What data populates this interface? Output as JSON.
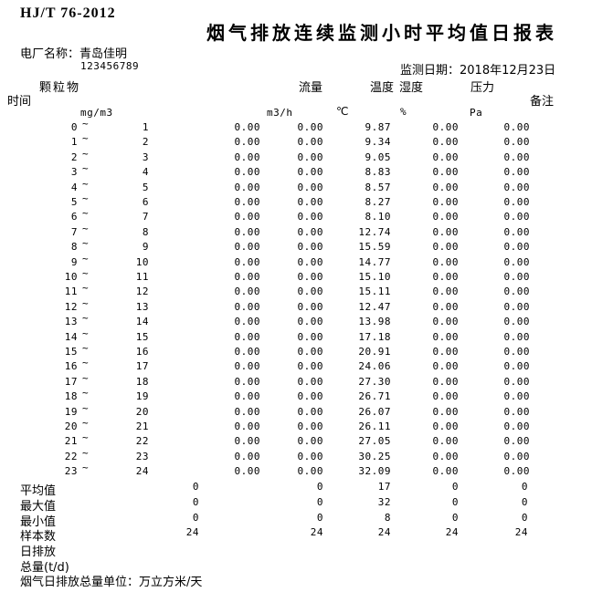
{
  "header": {
    "standard": "HJ/T 76-2012",
    "title": "烟气排放连续监测小时平均值日报表",
    "plant_label": "电厂名称：",
    "plant_name": "青岛佳明",
    "tick_mark": "`",
    "plant_code": "123456789",
    "date_label": "监测日期：",
    "date_value": "2018年12月23日"
  },
  "table": {
    "time_header": "时间",
    "remark_header": "备注",
    "tilde": "~",
    "columns": [
      {
        "label": "颗粒物",
        "unit": "mg/m3"
      },
      {
        "label": "流量",
        "unit": "m3/h"
      },
      {
        "label": "温度",
        "unit": "℃"
      },
      {
        "label": "湿度",
        "unit": "%"
      },
      {
        "label": "压力",
        "unit": "Pa"
      }
    ],
    "hourly_rows": [
      {
        "from": "0",
        "to": "1",
        "values": [
          "0.00",
          "0.00",
          "9.87",
          "0.00",
          "0.00"
        ]
      },
      {
        "from": "1",
        "to": "2",
        "values": [
          "0.00",
          "0.00",
          "9.34",
          "0.00",
          "0.00"
        ]
      },
      {
        "from": "2",
        "to": "3",
        "values": [
          "0.00",
          "0.00",
          "9.05",
          "0.00",
          "0.00"
        ]
      },
      {
        "from": "3",
        "to": "4",
        "values": [
          "0.00",
          "0.00",
          "8.83",
          "0.00",
          "0.00"
        ]
      },
      {
        "from": "4",
        "to": "5",
        "values": [
          "0.00",
          "0.00",
          "8.57",
          "0.00",
          "0.00"
        ]
      },
      {
        "from": "5",
        "to": "6",
        "values": [
          "0.00",
          "0.00",
          "8.27",
          "0.00",
          "0.00"
        ]
      },
      {
        "from": "6",
        "to": "7",
        "values": [
          "0.00",
          "0.00",
          "8.10",
          "0.00",
          "0.00"
        ]
      },
      {
        "from": "7",
        "to": "8",
        "values": [
          "0.00",
          "0.00",
          "12.74",
          "0.00",
          "0.00"
        ]
      },
      {
        "from": "8",
        "to": "9",
        "values": [
          "0.00",
          "0.00",
          "15.59",
          "0.00",
          "0.00"
        ]
      },
      {
        "from": "9",
        "to": "10",
        "values": [
          "0.00",
          "0.00",
          "14.77",
          "0.00",
          "0.00"
        ]
      },
      {
        "from": "10",
        "to": "11",
        "values": [
          "0.00",
          "0.00",
          "15.10",
          "0.00",
          "0.00"
        ]
      },
      {
        "from": "11",
        "to": "12",
        "values": [
          "0.00",
          "0.00",
          "15.11",
          "0.00",
          "0.00"
        ]
      },
      {
        "from": "12",
        "to": "13",
        "values": [
          "0.00",
          "0.00",
          "12.47",
          "0.00",
          "0.00"
        ]
      },
      {
        "from": "13",
        "to": "14",
        "values": [
          "0.00",
          "0.00",
          "13.98",
          "0.00",
          "0.00"
        ]
      },
      {
        "from": "14",
        "to": "15",
        "values": [
          "0.00",
          "0.00",
          "17.18",
          "0.00",
          "0.00"
        ]
      },
      {
        "from": "15",
        "to": "16",
        "values": [
          "0.00",
          "0.00",
          "20.91",
          "0.00",
          "0.00"
        ]
      },
      {
        "from": "16",
        "to": "17",
        "values": [
          "0.00",
          "0.00",
          "24.06",
          "0.00",
          "0.00"
        ]
      },
      {
        "from": "17",
        "to": "18",
        "values": [
          "0.00",
          "0.00",
          "27.30",
          "0.00",
          "0.00"
        ]
      },
      {
        "from": "18",
        "to": "19",
        "values": [
          "0.00",
          "0.00",
          "26.71",
          "0.00",
          "0.00"
        ]
      },
      {
        "from": "19",
        "to": "20",
        "values": [
          "0.00",
          "0.00",
          "26.07",
          "0.00",
          "0.00"
        ]
      },
      {
        "from": "20",
        "to": "21",
        "values": [
          "0.00",
          "0.00",
          "26.11",
          "0.00",
          "0.00"
        ]
      },
      {
        "from": "21",
        "to": "22",
        "values": [
          "0.00",
          "0.00",
          "27.05",
          "0.00",
          "0.00"
        ]
      },
      {
        "from": "22",
        "to": "23",
        "values": [
          "0.00",
          "0.00",
          "30.25",
          "0.00",
          "0.00"
        ]
      },
      {
        "from": "23",
        "to": "24",
        "values": [
          "0.00",
          "0.00",
          "32.09",
          "0.00",
          "0.00"
        ]
      }
    ],
    "summary_rows": [
      {
        "label": "平均值",
        "values": [
          "0",
          "0",
          "17",
          "0",
          "0"
        ]
      },
      {
        "label": "最大值",
        "values": [
          "0",
          "0",
          "32",
          "0",
          "0"
        ]
      },
      {
        "label": "最小值",
        "values": [
          "0",
          "0",
          "8",
          "0",
          "0"
        ]
      },
      {
        "label": "样本数",
        "values": [
          "24",
          "24",
          "24",
          "24",
          "24"
        ]
      },
      {
        "label": "日排放",
        "values": [
          "",
          "",
          "",
          "",
          ""
        ]
      },
      {
        "label": "总量(t/d)",
        "values": [
          "",
          "",
          "",
          "",
          ""
        ]
      }
    ],
    "footnote": "烟气日排放总量单位：万立方米/天"
  }
}
